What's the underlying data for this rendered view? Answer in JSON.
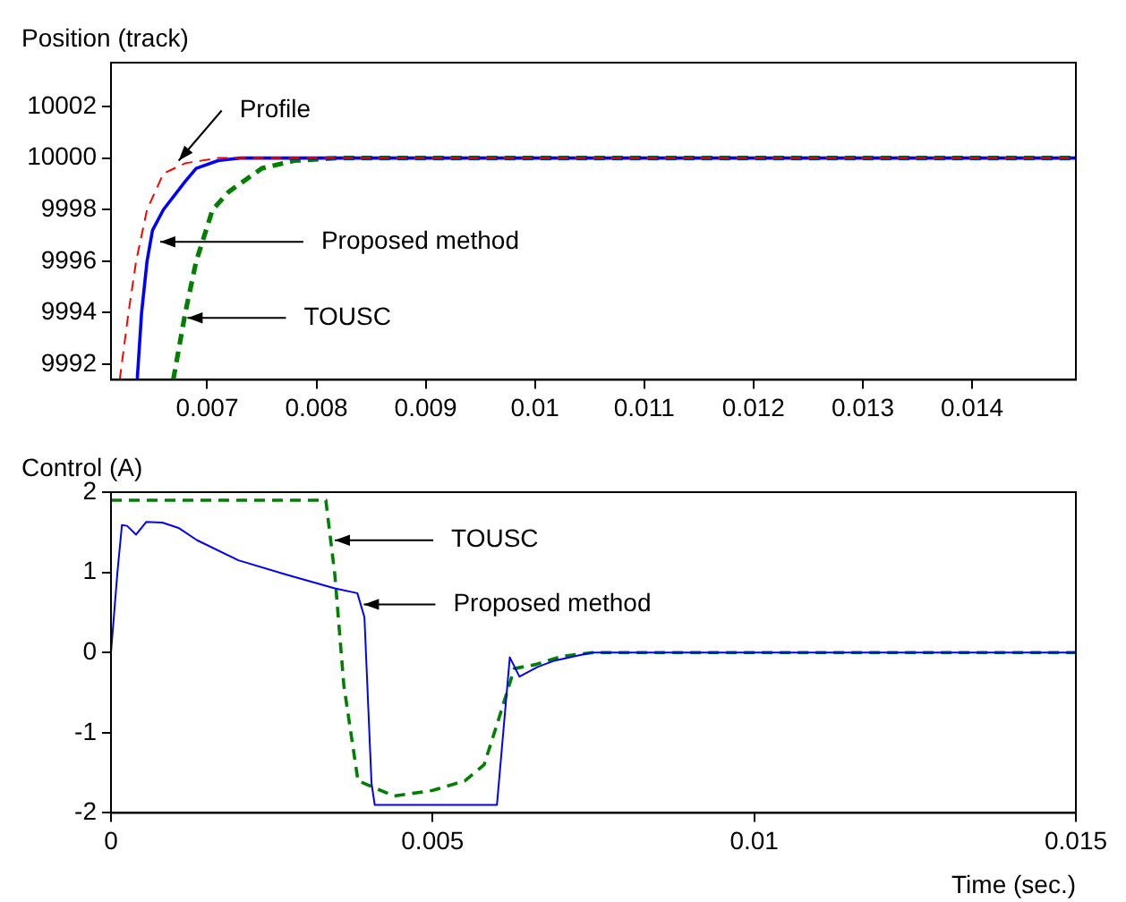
{
  "chart_data": [
    {
      "type": "line",
      "ylabel": "Position (track)",
      "xlim": [
        0.00612,
        0.01495
      ],
      "ylim": [
        9991.4,
        10003.7
      ],
      "xticks": [
        0.007,
        0.008,
        0.009,
        0.01,
        0.011,
        0.012,
        0.013,
        0.014
      ],
      "yticks": [
        9992,
        9994,
        9996,
        9998,
        10000,
        10002
      ],
      "grid": false,
      "series": [
        {
          "color": "#ff0000",
          "line_style": "dashed",
          "x": [
            0.0062,
            0.00628,
            0.00635,
            0.00645,
            0.0066,
            0.0068,
            0.0071,
            0.01495
          ],
          "values": [
            9991.4,
            9994,
            9996,
            9998,
            9999.4,
            9999.8,
            10000,
            10000
          ]
        },
        {
          "color": "#0000ff",
          "line_style": "solid",
          "x": [
            0.00636,
            0.0064,
            0.00645,
            0.0065,
            0.0066,
            0.0068,
            0.0069,
            0.0071,
            0.0073,
            0.01495
          ],
          "values": [
            9991.4,
            9994,
            9996,
            9997.2,
            9998,
            9999.1,
            9999.6,
            9999.9,
            10000,
            10000
          ]
        },
        {
          "color": "#008000",
          "line_style": "dashed",
          "x": [
            0.00669,
            0.0068,
            0.0069,
            0.00705,
            0.0072,
            0.0075,
            0.0078,
            0.0082,
            0.01495
          ],
          "values": [
            9991.4,
            9994,
            9996,
            9998,
            9998.7,
            9999.6,
            9999.9,
            10000,
            10000
          ]
        }
      ],
      "annotations": [
        {
          "text": "Profile",
          "x": 0.00674,
          "y": 9999.9
        },
        {
          "text": "Proposed method",
          "x": 0.00657,
          "y": 9996.75
        },
        {
          "text": "TOUSC",
          "x": 0.00682,
          "y": 9993.8
        }
      ]
    },
    {
      "type": "line",
      "ylabel": "Control (A)",
      "xlabel": "Time (sec.)",
      "xlim": [
        0,
        0.015
      ],
      "ylim": [
        -2,
        2
      ],
      "xticks": [
        0,
        0.005,
        0.01,
        0.015
      ],
      "yticks": [
        -2,
        -1,
        0,
        1,
        2
      ],
      "grid": false,
      "series": [
        {
          "color": "#0000ff",
          "line_style": "solid",
          "x": [
            0,
            0.0001,
            0.00017,
            0.00025,
            0.00039,
            0.00055,
            0.0008,
            0.00106,
            0.00134,
            0.00198,
            0.00273,
            0.00348,
            0.00383,
            0.00394,
            0.00405,
            0.0041,
            0.006,
            0.0062,
            0.00635,
            0.00663,
            0.0069,
            0.00747,
            0.015
          ],
          "values": [
            0,
            1.0,
            1.59,
            1.58,
            1.47,
            1.63,
            1.62,
            1.55,
            1.4,
            1.15,
            0.97,
            0.8,
            0.74,
            0.44,
            -1.63,
            -1.9,
            -1.9,
            -0.06,
            -0.3,
            -0.18,
            -0.1,
            0,
            0
          ]
        },
        {
          "color": "#008000",
          "line_style": "dashed",
          "x": [
            0,
            0.00334,
            0.00348,
            0.00362,
            0.00384,
            0.0044,
            0.005,
            0.0055,
            0.0058,
            0.006,
            0.00627,
            0.0066,
            0.007,
            0.0075,
            0.015
          ],
          "values": [
            1.9,
            1.9,
            0.97,
            -0.41,
            -1.6,
            -1.79,
            -1.72,
            -1.6,
            -1.4,
            -0.9,
            -0.2,
            -0.15,
            -0.05,
            0,
            0
          ]
        }
      ],
      "annotations": [
        {
          "text": "TOUSC",
          "x": 0.00348,
          "y": 1.4
        },
        {
          "text": "Proposed method",
          "x": 0.00393,
          "y": 0.6
        }
      ]
    }
  ]
}
